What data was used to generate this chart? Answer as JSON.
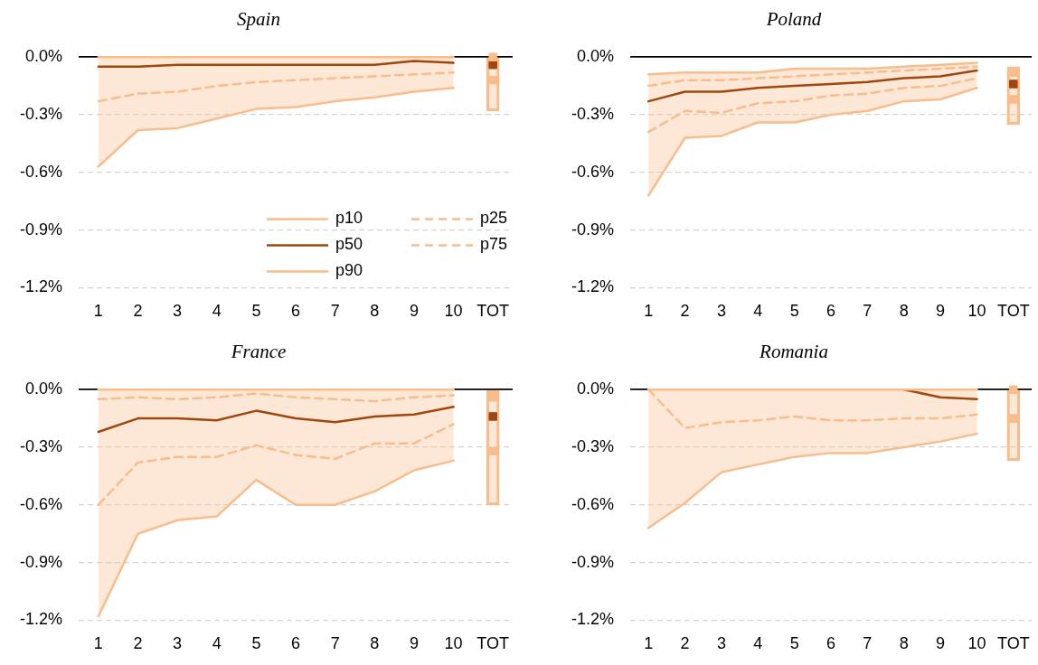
{
  "chart_data": [
    {
      "type": "line",
      "title": "Spain",
      "categories": [
        "1",
        "2",
        "3",
        "4",
        "5",
        "6",
        "7",
        "8",
        "9",
        "10",
        "TOT"
      ],
      "ylim": [
        -1.2,
        0
      ],
      "yticks": [
        {
          "value": 0,
          "label": "0.0%"
        },
        {
          "value": -0.3,
          "label": "-0.3%"
        },
        {
          "value": -0.6,
          "label": "-0.6%"
        },
        {
          "value": -0.9,
          "label": "-0.9%"
        },
        {
          "value": -1.2,
          "label": "-1.2%"
        }
      ],
      "grid": "y",
      "legend": "bottom right",
      "series": [
        {
          "name": "p10",
          "color": "#f8bd8c",
          "line_style": "solid",
          "values": [
            -0.57,
            -0.38,
            -0.37,
            -0.32,
            -0.27,
            -0.26,
            -0.23,
            -0.21,
            -0.18,
            -0.16,
            null
          ]
        },
        {
          "name": "p25",
          "color": "#f8bd8c",
          "line_style": "dashed",
          "values": [
            -0.23,
            -0.19,
            -0.18,
            -0.15,
            -0.13,
            -0.12,
            -0.11,
            -0.1,
            -0.09,
            -0.08,
            null
          ]
        },
        {
          "name": "p50",
          "color": "#a0470f",
          "line_style": "solid",
          "values": [
            -0.05,
            -0.05,
            -0.04,
            -0.04,
            -0.04,
            -0.04,
            -0.04,
            -0.04,
            -0.02,
            -0.03,
            null
          ],
          "lower": [
            -0.57,
            -0.38,
            -0.37,
            -0.32,
            -0.27,
            -0.26,
            -0.23,
            -0.21,
            -0.18,
            -0.16,
            null
          ],
          "upper": [
            0,
            0,
            0,
            0,
            0,
            0,
            0,
            0,
            0,
            0,
            null
          ]
        },
        {
          "name": "p75",
          "color": "#f8bd8c",
          "line_style": "dashed",
          "values": [
            null,
            null,
            null,
            null,
            null,
            null,
            null,
            null,
            null,
            null,
            null
          ]
        },
        {
          "name": "p90",
          "color": "#f8bd8c",
          "line_style": "solid",
          "values": [
            0,
            0,
            0,
            0,
            0,
            0,
            0,
            0,
            0,
            0,
            null
          ]
        },
        {
          "type": "bar",
          "color": "#f8bd8c",
          "x": [
            "TOT"
          ],
          "base": [
            -0.28
          ],
          "values": [
            0.28
          ]
        },
        {
          "type": "scatter",
          "marker": "square",
          "x": [
            "TOT",
            "TOT",
            "TOT"
          ],
          "values": [
            -0.12,
            -0.04,
            0
          ],
          "colors": [
            "#f8bd8c",
            "#a0470f",
            "#f8bd8c"
          ]
        }
      ]
    },
    {
      "type": "line",
      "title": "Poland",
      "categories": [
        "1",
        "2",
        "3",
        "4",
        "5",
        "6",
        "7",
        "8",
        "9",
        "10",
        "TOT"
      ],
      "ylim": [
        -1.2,
        0
      ],
      "yticks": [
        {
          "value": 0,
          "label": "0.0%"
        },
        {
          "value": -0.3,
          "label": "-0.3%"
        },
        {
          "value": -0.6,
          "label": "-0.6%"
        },
        {
          "value": -0.9,
          "label": "-0.9%"
        },
        {
          "value": -1.2,
          "label": "-1.2%"
        }
      ],
      "grid": "y",
      "series": [
        {
          "color": "#f8bd8c",
          "line_style": "solid",
          "values": [
            -0.72,
            -0.42,
            -0.41,
            -0.34,
            -0.34,
            -0.3,
            -0.28,
            -0.23,
            -0.22,
            -0.16,
            null
          ]
        },
        {
          "color": "#f8bd8c",
          "line_style": "dashed",
          "values": [
            -0.39,
            -0.28,
            -0.29,
            -0.24,
            -0.23,
            -0.2,
            -0.19,
            -0.16,
            -0.15,
            -0.11,
            null
          ]
        },
        {
          "color": "#a0470f",
          "line_style": "solid",
          "values": [
            -0.23,
            -0.18,
            -0.18,
            -0.16,
            -0.15,
            -0.14,
            -0.13,
            -0.11,
            -0.1,
            -0.07,
            null
          ],
          "lower": [
            -0.72,
            -0.42,
            -0.41,
            -0.34,
            -0.34,
            -0.3,
            -0.28,
            -0.23,
            -0.22,
            -0.16,
            null
          ],
          "upper": [
            -0.09,
            -0.08,
            -0.08,
            -0.08,
            -0.06,
            -0.06,
            -0.06,
            -0.05,
            -0.04,
            -0.03,
            null
          ]
        },
        {
          "color": "#f8bd8c",
          "line_style": "dashed",
          "values": [
            -0.15,
            -0.12,
            -0.12,
            -0.11,
            -0.1,
            -0.09,
            -0.08,
            -0.07,
            -0.06,
            -0.05,
            null
          ]
        },
        {
          "color": "#f8bd8c",
          "line_style": "solid",
          "values": [
            -0.09,
            -0.08,
            -0.08,
            -0.08,
            -0.06,
            -0.06,
            -0.06,
            -0.05,
            -0.04,
            -0.03,
            null
          ]
        },
        {
          "type": "bar",
          "color": "#f8bd8c",
          "x": [
            "TOT"
          ],
          "base": [
            -0.35
          ],
          "values": [
            0.3
          ]
        },
        {
          "type": "scatter",
          "marker": "square",
          "x": [
            "TOT",
            "TOT",
            "TOT"
          ],
          "values": [
            -0.22,
            -0.14,
            -0.08
          ],
          "colors": [
            "#f8bd8c",
            "#a0470f",
            "#f8bd8c"
          ]
        }
      ]
    },
    {
      "type": "line",
      "title": "France",
      "categories": [
        "1",
        "2",
        "3",
        "4",
        "5",
        "6",
        "7",
        "8",
        "9",
        "10",
        "TOT"
      ],
      "ylim": [
        -1.2,
        0
      ],
      "yticks": [
        {
          "value": 0,
          "label": "0.0%"
        },
        {
          "value": -0.3,
          "label": "-0.3%"
        },
        {
          "value": -0.6,
          "label": "-0.6%"
        },
        {
          "value": -0.9,
          "label": "-0.9%"
        },
        {
          "value": -1.2,
          "label": "-1.2%"
        }
      ],
      "grid": "y",
      "series": [
        {
          "color": "#f8bd8c",
          "line_style": "solid",
          "values": [
            -1.18,
            -0.75,
            -0.68,
            -0.66,
            -0.47,
            -0.6,
            -0.6,
            -0.53,
            -0.42,
            -0.37,
            null
          ]
        },
        {
          "color": "#f8bd8c",
          "line_style": "dashed",
          "values": [
            -0.6,
            -0.38,
            -0.35,
            -0.35,
            -0.29,
            -0.34,
            -0.36,
            -0.28,
            -0.28,
            -0.18,
            null
          ]
        },
        {
          "color": "#a0470f",
          "line_style": "solid",
          "values": [
            -0.22,
            -0.15,
            -0.15,
            -0.16,
            -0.11,
            -0.15,
            -0.17,
            -0.14,
            -0.13,
            -0.09,
            null
          ],
          "lower": [
            -1.18,
            -0.75,
            -0.68,
            -0.66,
            -0.47,
            -0.6,
            -0.6,
            -0.53,
            -0.42,
            -0.37,
            null
          ],
          "upper": [
            0,
            0,
            0,
            0,
            0,
            0,
            0,
            0,
            0,
            0,
            null
          ]
        },
        {
          "color": "#f8bd8c",
          "line_style": "dashed",
          "values": [
            -0.05,
            -0.04,
            -0.05,
            -0.04,
            -0.02,
            -0.04,
            -0.05,
            -0.06,
            -0.04,
            -0.03,
            null
          ]
        },
        {
          "color": "#f8bd8c",
          "line_style": "solid",
          "values": [
            0,
            0,
            0,
            0,
            0,
            0,
            0,
            0,
            0,
            0,
            null
          ]
        },
        {
          "type": "bar",
          "color": "#f8bd8c",
          "x": [
            "TOT"
          ],
          "base": [
            -0.6
          ],
          "values": [
            0.6
          ]
        },
        {
          "type": "scatter",
          "marker": "square",
          "x": [
            "TOT",
            "TOT",
            "TOT"
          ],
          "values": [
            -0.32,
            -0.14,
            -0.04
          ],
          "colors": [
            "#f8bd8c",
            "#a0470f",
            "#f8bd8c"
          ]
        }
      ]
    },
    {
      "type": "line",
      "title": "Romania",
      "categories": [
        "1",
        "2",
        "3",
        "4",
        "5",
        "6",
        "7",
        "8",
        "9",
        "10",
        "TOT"
      ],
      "ylim": [
        -1.2,
        0
      ],
      "yticks": [
        {
          "value": 0,
          "label": "0.0%"
        },
        {
          "value": -0.3,
          "label": "-0.3%"
        },
        {
          "value": -0.6,
          "label": "-0.6%"
        },
        {
          "value": -0.9,
          "label": "-0.9%"
        },
        {
          "value": -1.2,
          "label": "-1.2%"
        }
      ],
      "grid": "y",
      "series": [
        {
          "color": "#f8bd8c",
          "line_style": "solid",
          "values": [
            -0.72,
            -0.59,
            -0.43,
            -0.39,
            -0.35,
            -0.33,
            -0.33,
            -0.3,
            -0.27,
            -0.23,
            null
          ]
        },
        {
          "color": "#f8bd8c",
          "line_style": "dashed",
          "values": [
            0,
            -0.2,
            -0.17,
            -0.16,
            -0.14,
            -0.16,
            -0.16,
            -0.15,
            -0.15,
            -0.13,
            null
          ]
        },
        {
          "color": "#a0470f",
          "line_style": "solid",
          "values": [
            null,
            null,
            null,
            null,
            null,
            null,
            null,
            0,
            -0.04,
            -0.05,
            null
          ],
          "lower": [
            -0.72,
            -0.59,
            -0.43,
            -0.39,
            -0.35,
            -0.33,
            -0.33,
            -0.3,
            -0.27,
            -0.23,
            null
          ],
          "upper": [
            0,
            0,
            0,
            0,
            0,
            0,
            0,
            0,
            0,
            0,
            null
          ]
        },
        {
          "color": "#f8bd8c",
          "line_style": "dashed",
          "values": [
            null,
            null,
            null,
            null,
            null,
            null,
            null,
            null,
            null,
            null,
            null
          ]
        },
        {
          "color": "#f8bd8c",
          "line_style": "solid",
          "values": [
            0,
            0,
            0,
            0,
            0,
            0,
            0,
            0,
            0,
            0,
            null
          ]
        },
        {
          "type": "bar",
          "color": "#f8bd8c",
          "x": [
            "TOT"
          ],
          "base": [
            -0.37
          ],
          "values": [
            0.37
          ]
        },
        {
          "type": "scatter",
          "marker": "square",
          "x": [
            "TOT",
            "TOT"
          ],
          "values": [
            -0.15,
            0
          ],
          "colors": [
            "#f8bd8c",
            "#f8bd8c"
          ]
        }
      ]
    }
  ]
}
